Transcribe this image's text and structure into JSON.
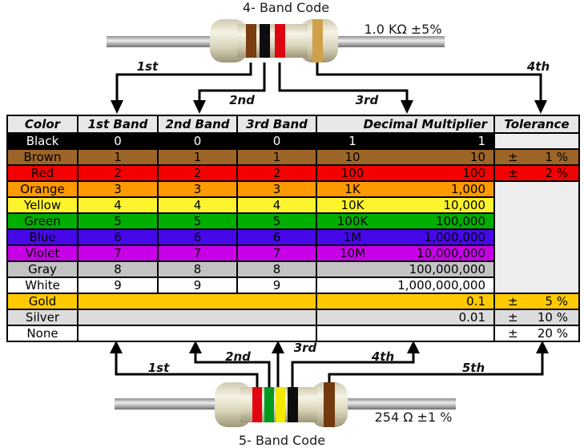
{
  "top_diagram": {
    "title": "4- Band Code",
    "value_label": "1.0 KΩ  ±5%",
    "arrow_labels": [
      "1st",
      "2nd",
      "3rd",
      "4th"
    ],
    "bands": [
      {
        "name": "brown",
        "color": "#7a3c10"
      },
      {
        "name": "black",
        "color": "#0d0d0d"
      },
      {
        "name": "red",
        "color": "#dd0510"
      },
      {
        "name": "gold",
        "color": "#d0a04a"
      }
    ]
  },
  "bottom_diagram": {
    "title": "5- Band Code",
    "value_label": "254 Ω  ±1 %",
    "arrow_labels": [
      "1st",
      "2nd",
      "3rd",
      "4th",
      "5th"
    ],
    "bands": [
      {
        "name": "red",
        "color": "#e00510"
      },
      {
        "name": "green",
        "color": "#009a20"
      },
      {
        "name": "yellow",
        "color": "#f2e800"
      },
      {
        "name": "black",
        "color": "#0d0d0d"
      },
      {
        "name": "brown",
        "color": "#733a10"
      }
    ]
  },
  "table": {
    "headers": [
      "Color",
      "1st Band",
      "2nd Band",
      "3rd Band",
      "Decimal Multiplier",
      "Tolerance"
    ],
    "empty_cell_bg": "#ededed",
    "rows": [
      {
        "name": "Black",
        "bg": "#000000",
        "fg": "#ffffff",
        "bands": [
          "0",
          "0",
          "0"
        ],
        "mult_short": "1",
        "mult_long": "1",
        "tolerance": {
          "kind": "empty"
        }
      },
      {
        "name": "Brown",
        "bg": "#9d6528",
        "bands": [
          "1",
          "1",
          "1"
        ],
        "mult_short": "10",
        "mult_long": "10",
        "tolerance": {
          "kind": "value",
          "sign": "±",
          "value": "1 %"
        }
      },
      {
        "name": "Red",
        "bg": "#f40000",
        "bands": [
          "2",
          "2",
          "2"
        ],
        "mult_short": "100",
        "mult_long": "100",
        "tolerance": {
          "kind": "value",
          "sign": "±",
          "value": "2 %"
        }
      },
      {
        "name": "Orange",
        "bg": "#ff9a00",
        "bands": [
          "3",
          "3",
          "3"
        ],
        "mult_short": "1K",
        "mult_long": "1,000",
        "tolerance": {
          "kind": "merged-empty",
          "rowspan": 7
        }
      },
      {
        "name": "Yellow",
        "bg": "#fef42d",
        "bands": [
          "4",
          "4",
          "4"
        ],
        "mult_short": "10K",
        "mult_long": "10,000",
        "tolerance": {
          "kind": "none"
        }
      },
      {
        "name": "Green",
        "bg": "#00ae00",
        "bands": [
          "5",
          "5",
          "5"
        ],
        "mult_short": "100K",
        "mult_long": "100,000",
        "tolerance": {
          "kind": "none"
        }
      },
      {
        "name": "Blue",
        "bg": "#4608e8",
        "bands": [
          "6",
          "6",
          "6"
        ],
        "mult_short": "1M",
        "mult_long": "1,000,000",
        "tolerance": {
          "kind": "none"
        }
      },
      {
        "name": "Violet",
        "bg": "#c700e8",
        "bands": [
          "7",
          "7",
          "7"
        ],
        "mult_short": "10M",
        "mult_long": "10,000,000",
        "tolerance": {
          "kind": "none"
        }
      },
      {
        "name": "Gray",
        "bg": "#c3c3c3",
        "bands": [
          "8",
          "8",
          "8"
        ],
        "mult_short": "",
        "mult_long": "100,000,000",
        "tolerance": {
          "kind": "none"
        }
      },
      {
        "name": "White",
        "bg": "#ffffff",
        "bands": [
          "9",
          "9",
          "9"
        ],
        "mult_short": "",
        "mult_long": "1,000,000,000",
        "tolerance": {
          "kind": "none"
        }
      },
      {
        "name": "Gold",
        "bg": "#ffca00",
        "bands_merged": true,
        "mult_short": "",
        "mult_long": "0.1",
        "tolerance": {
          "kind": "value",
          "sign": "±",
          "value": "5 %"
        }
      },
      {
        "name": "Silver",
        "bg": "#dcdcdc",
        "bands_merged": true,
        "mult_short": "",
        "mult_long": "0.01",
        "tolerance": {
          "kind": "value",
          "sign": "±",
          "value": "10 %"
        }
      },
      {
        "name": "None",
        "bg": "#ffffff",
        "bands_merged": true,
        "mult_short": "",
        "mult_long": "",
        "tolerance": {
          "kind": "value",
          "sign": "±",
          "value": "20 %"
        }
      }
    ]
  }
}
